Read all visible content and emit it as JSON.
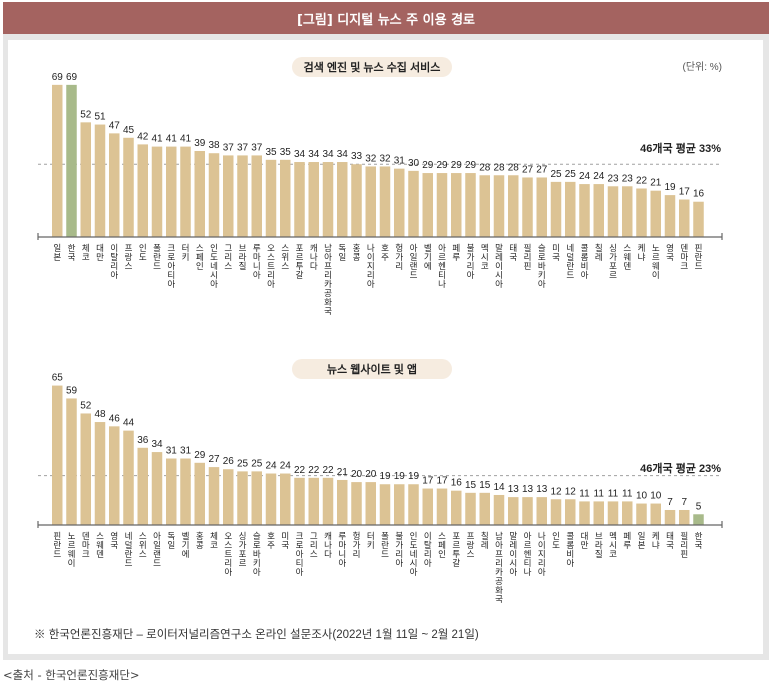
{
  "header": {
    "title": "[그림] 디지털 뉴스 주 이용 경로"
  },
  "unit_label": "(단위: %)",
  "note": "※ 한국언론진흥재단 – 로이터저널리즘연구소 온라인 설문조사(2022년 1월 11일 ~ 2월 21일)",
  "source": "<출처 - 한국언론진흥재단>",
  "colors": {
    "bar": "#dcc394",
    "highlight": "#a8ba8a",
    "header": "#a46360",
    "pill": "#f6ece0",
    "avg_line": "#a0a0a0"
  },
  "chart_data": [
    {
      "type": "bar",
      "title": "검색 엔진 및 뉴스 수집 서비스",
      "categories": [
        "일본",
        "한국",
        "체코",
        "대만",
        "이탈리아",
        "프랑스",
        "인도",
        "폴란드",
        "크로아티아",
        "터키",
        "스페인",
        "인도네시아",
        "그리스",
        "브라질",
        "루마니아",
        "오스트리아",
        "스위스",
        "포르투갈",
        "캐나다",
        "남아프리카공화국",
        "독일",
        "홍콩",
        "나이지리아",
        "호주",
        "헝가리",
        "아일랜드",
        "벨기에",
        "아르헨티나",
        "페루",
        "불가리아",
        "멕시코",
        "말레이시아",
        "태국",
        "필리핀",
        "슬로바키아",
        "미국",
        "네덜란드",
        "콜롬비아",
        "칠레",
        "싱가포르",
        "스웨덴",
        "케냐",
        "노르웨이",
        "영국",
        "덴마크",
        "핀란드"
      ],
      "values": [
        69,
        69,
        52,
        51,
        47,
        45,
        42,
        41,
        41,
        41,
        39,
        38,
        37,
        37,
        37,
        35,
        35,
        34,
        34,
        34,
        34,
        33,
        32,
        32,
        31,
        30,
        29,
        29,
        29,
        29,
        28,
        28,
        28,
        27,
        27,
        25,
        25,
        24,
        24,
        23,
        23,
        22,
        21,
        19,
        17,
        16
      ],
      "highlight": "한국",
      "average": 33,
      "average_label": "46개국 평균 33%",
      "ylim": [
        0,
        70
      ],
      "unit": "%"
    },
    {
      "type": "bar",
      "title": "뉴스 웹사이트 및 앱",
      "categories": [
        "핀란드",
        "노르웨이",
        "덴마크",
        "스웨덴",
        "영국",
        "네덜란드",
        "스위스",
        "아일랜드",
        "독일",
        "벨기에",
        "홍콩",
        "체코",
        "오스트리아",
        "싱가포르",
        "슬로바키아",
        "호주",
        "미국",
        "크로아티아",
        "그리스",
        "캐나다",
        "루마니아",
        "헝가리",
        "터키",
        "폴란드",
        "불가리아",
        "인도네시아",
        "이탈리아",
        "스페인",
        "포르투갈",
        "프랑스",
        "칠레",
        "남아프리카공화국",
        "말레이시아",
        "아르헨티나",
        "나이지리아",
        "인도",
        "콜롬비아",
        "대만",
        "브라질",
        "멕시코",
        "페루",
        "일본",
        "케냐",
        "태국",
        "필리핀",
        "한국"
      ],
      "values": [
        65,
        59,
        52,
        48,
        46,
        44,
        36,
        34,
        31,
        31,
        29,
        27,
        26,
        25,
        25,
        24,
        24,
        22,
        22,
        22,
        21,
        20,
        20,
        19,
        19,
        19,
        17,
        17,
        16,
        15,
        15,
        14,
        13,
        13,
        13,
        12,
        12,
        11,
        11,
        11,
        11,
        10,
        10,
        7,
        7,
        5
      ],
      "highlight": "한국",
      "average": 23,
      "average_label": "46개국 평균 23%",
      "ylim": [
        0,
        70
      ],
      "unit": "%"
    }
  ]
}
